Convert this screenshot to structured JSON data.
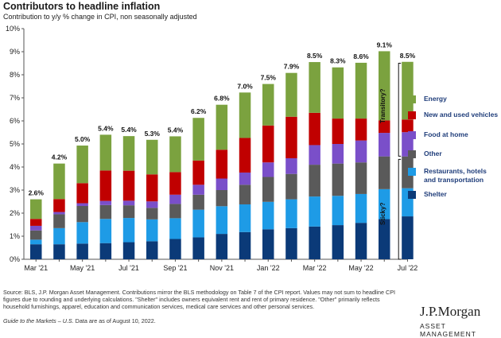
{
  "header": {
    "title": "Contributors to headline inflation",
    "subtitle": "Contribution to y/y % change in CPI, non seasonally adjusted"
  },
  "legend": [
    {
      "name": "Energy",
      "color": "#7ba23f"
    },
    {
      "name": "New and used vehicles",
      "color": "#c00000"
    },
    {
      "name": "Food  at home",
      "color": "#7a4fc9"
    },
    {
      "name": "Other",
      "color": "#5a5a5a"
    },
    {
      "name": "Restaurants, hotels and transportation",
      "color": "#1e9be6"
    },
    {
      "name": "Shelter",
      "color": "#0b3a78"
    }
  ],
  "annotations": {
    "transitory": "Transitory?",
    "sticky": "Sticky?"
  },
  "footnote": {
    "text": "Source: BLS, J.P. Morgan Asset Management. Contributions mirror the BLS methodology on Table 7 of the CPI report. Values may not sum to headline CPI figures due to rounding and underlying calculations. \"Shelter\" includes owners equivalent rent and rent of primary residence. \"Other\" primarily reflects household furnishings, apparel, education and communication services, medical care services and other personal services.",
    "guide": "Guide to the Markets – U.S.",
    "data_asof": " Data are as of August 10, 2022."
  },
  "brand": {
    "name": "J.P.Morgan",
    "sub": "ASSET MANAGEMENT"
  },
  "chart_data": {
    "type": "bar",
    "stacked": true,
    "categories": [
      "Mar '21",
      "Apr '21",
      "May '21",
      "Jun '21",
      "Jul '21",
      "Aug '21",
      "Sep '21",
      "Oct '21",
      "Nov '21",
      "Dec '21",
      "Jan '22",
      "Feb '22",
      "Mar '22",
      "Apr '22",
      "May '22",
      "Jun '22",
      "Jul '22"
    ],
    "tick_labels": [
      "Mar '21",
      "",
      "May '21",
      "",
      "Jul '21",
      "",
      "Sep '21",
      "",
      "Nov '21",
      "",
      "Jan '22",
      "",
      "Mar '22",
      "",
      "May '22",
      "",
      "Jul '22"
    ],
    "totals_labels": [
      "2.6%",
      "4.2%",
      "5.0%",
      "5.4%",
      "5.4%",
      "5.3%",
      "5.4%",
      "6.2%",
      "6.8%",
      "7.0%",
      "7.5%",
      "7.9%",
      "8.5%",
      "8.3%",
      "8.6%",
      "9.1%",
      "8.5%"
    ],
    "series": [
      {
        "name": "Shelter",
        "values": [
          0.65,
          0.65,
          0.68,
          0.7,
          0.74,
          0.78,
          0.88,
          0.95,
          1.1,
          1.18,
          1.3,
          1.35,
          1.42,
          1.48,
          1.58,
          1.74,
          1.86
        ]
      },
      {
        "name": "Restaurants, hotels and transportation",
        "values": [
          0.2,
          0.7,
          0.93,
          1.05,
          1.05,
          0.95,
          0.9,
          1.2,
          1.2,
          1.2,
          1.19,
          1.25,
          1.3,
          1.27,
          1.25,
          1.3,
          1.22
        ]
      },
      {
        "name": "Other",
        "values": [
          0.4,
          0.6,
          0.7,
          0.6,
          0.55,
          0.5,
          0.62,
          0.65,
          0.7,
          0.85,
          1.08,
          1.1,
          1.38,
          1.4,
          1.37,
          1.42,
          1.38
        ]
      },
      {
        "name": "Food  at home",
        "values": [
          0.2,
          0.1,
          0.12,
          0.18,
          0.2,
          0.28,
          0.4,
          0.43,
          0.5,
          0.53,
          0.63,
          0.68,
          0.85,
          0.85,
          0.95,
          1.02,
          1.05
        ]
      },
      {
        "name": "New and used vehicles",
        "values": [
          0.3,
          0.56,
          0.87,
          1.32,
          1.3,
          1.17,
          0.98,
          1.05,
          1.25,
          1.5,
          1.6,
          1.8,
          1.4,
          1.1,
          0.95,
          0.54,
          0.55
        ]
      },
      {
        "name": "Energy",
        "values": [
          0.85,
          1.54,
          1.63,
          1.55,
          1.5,
          1.5,
          1.55,
          1.85,
          1.95,
          1.97,
          1.8,
          1.9,
          2.2,
          2.22,
          2.42,
          3.0,
          2.5
        ]
      }
    ],
    "ylim": [
      0,
      10
    ],
    "yticks": [
      0,
      1,
      2,
      3,
      4,
      5,
      6,
      7,
      8,
      9,
      10
    ],
    "ytick_labels": [
      "0%",
      "1%",
      "2%",
      "3%",
      "4%",
      "5%",
      "6%",
      "7%",
      "8%",
      "9%",
      "10%"
    ],
    "grid": false
  }
}
